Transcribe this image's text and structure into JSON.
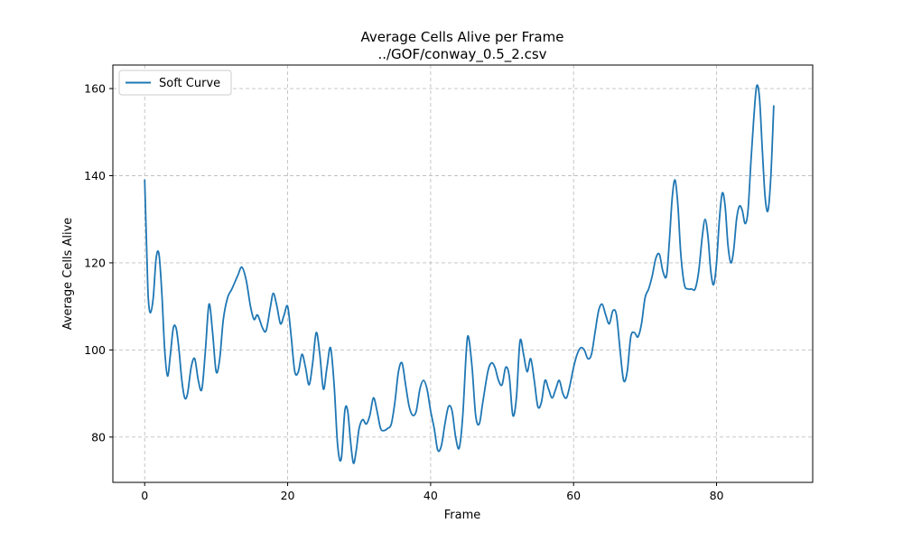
{
  "chart_data": {
    "type": "line",
    "title": "Average Cells Alive per Frame",
    "subtitle": "../GOF/conway_0.5_2.csv",
    "xlabel": "Frame",
    "ylabel": "Average Cells Alive",
    "xlim": [
      -4.45,
      93.45
    ],
    "ylim": [
      69.6,
      165.4
    ],
    "xticks": [
      0,
      20,
      40,
      60,
      80
    ],
    "yticks": [
      80,
      100,
      120,
      140,
      160
    ],
    "grid": true,
    "legend_position": "top-left",
    "series": [
      {
        "name": "Soft Curve",
        "color": "#1f77b4",
        "points": [
          [
            0,
            139
          ],
          [
            0.3,
            122
          ],
          [
            0.5,
            112
          ],
          [
            0.8,
            108.5
          ],
          [
            1.2,
            112
          ],
          [
            1.6,
            121
          ],
          [
            2,
            122
          ],
          [
            2.4,
            113
          ],
          [
            2.8,
            100
          ],
          [
            3.2,
            94
          ],
          [
            3.6,
            99
          ],
          [
            4,
            105
          ],
          [
            4.4,
            105
          ],
          [
            4.8,
            100
          ],
          [
            5.2,
            93
          ],
          [
            5.6,
            89
          ],
          [
            6,
            90
          ],
          [
            6.5,
            96
          ],
          [
            7,
            98
          ],
          [
            7.5,
            93
          ],
          [
            8,
            91
          ],
          [
            8.5,
            100
          ],
          [
            9,
            110.5
          ],
          [
            9.5,
            104
          ],
          [
            10,
            95
          ],
          [
            10.5,
            98
          ],
          [
            11,
            107
          ],
          [
            11.6,
            112
          ],
          [
            12.2,
            114
          ],
          [
            13,
            117
          ],
          [
            13.6,
            119
          ],
          [
            14.2,
            116
          ],
          [
            14.8,
            110
          ],
          [
            15.3,
            107
          ],
          [
            15.8,
            108
          ],
          [
            16.5,
            105
          ],
          [
            17,
            104.5
          ],
          [
            17.6,
            110
          ],
          [
            18,
            113
          ],
          [
            18.5,
            110
          ],
          [
            19,
            106
          ],
          [
            19.5,
            108
          ],
          [
            20,
            110
          ],
          [
            20.5,
            103
          ],
          [
            21,
            95
          ],
          [
            21.5,
            95
          ],
          [
            22,
            99
          ],
          [
            22.5,
            96
          ],
          [
            23,
            92
          ],
          [
            23.5,
            97
          ],
          [
            24,
            104
          ],
          [
            24.5,
            99
          ],
          [
            25,
            91
          ],
          [
            25.5,
            96
          ],
          [
            26,
            100.5
          ],
          [
            26.5,
            92
          ],
          [
            27,
            78
          ],
          [
            27.5,
            75
          ],
          [
            28,
            86
          ],
          [
            28.4,
            86
          ],
          [
            28.8,
            79
          ],
          [
            29.2,
            74
          ],
          [
            29.6,
            77
          ],
          [
            30,
            82
          ],
          [
            30.5,
            84
          ],
          [
            31,
            83
          ],
          [
            31.5,
            85
          ],
          [
            32,
            89
          ],
          [
            32.5,
            86
          ],
          [
            33,
            82
          ],
          [
            33.5,
            81.5
          ],
          [
            34,
            82
          ],
          [
            34.5,
            83
          ],
          [
            35,
            88
          ],
          [
            35.5,
            95
          ],
          [
            36,
            97
          ],
          [
            36.5,
            92
          ],
          [
            37,
            87
          ],
          [
            37.5,
            85
          ],
          [
            38,
            86
          ],
          [
            38.5,
            91
          ],
          [
            39,
            93
          ],
          [
            39.5,
            91
          ],
          [
            40,
            86
          ],
          [
            40.5,
            82
          ],
          [
            41,
            77
          ],
          [
            41.5,
            78
          ],
          [
            42,
            83
          ],
          [
            42.5,
            87
          ],
          [
            43,
            86
          ],
          [
            43.5,
            80
          ],
          [
            44,
            77.5
          ],
          [
            44.5,
            85
          ],
          [
            45,
            100
          ],
          [
            45.3,
            103
          ],
          [
            45.8,
            96
          ],
          [
            46.3,
            85
          ],
          [
            46.8,
            83
          ],
          [
            47.3,
            88
          ],
          [
            48,
            95
          ],
          [
            48.5,
            97
          ],
          [
            49,
            96
          ],
          [
            49.5,
            93
          ],
          [
            50,
            92
          ],
          [
            50.5,
            96
          ],
          [
            51,
            94
          ],
          [
            51.5,
            85
          ],
          [
            52,
            89
          ],
          [
            52.5,
            102
          ],
          [
            53,
            99
          ],
          [
            53.5,
            95
          ],
          [
            54,
            98
          ],
          [
            54.5,
            93
          ],
          [
            55,
            87
          ],
          [
            55.5,
            88
          ],
          [
            56,
            93
          ],
          [
            56.5,
            91
          ],
          [
            57,
            89
          ],
          [
            57.5,
            91
          ],
          [
            58,
            93
          ],
          [
            58.5,
            90
          ],
          [
            59,
            89
          ],
          [
            59.5,
            92
          ],
          [
            60,
            96
          ],
          [
            60.5,
            99
          ],
          [
            61,
            100.5
          ],
          [
            61.5,
            100
          ],
          [
            62,
            98
          ],
          [
            62.5,
            99
          ],
          [
            63,
            104
          ],
          [
            63.5,
            109
          ],
          [
            64,
            110.5
          ],
          [
            64.5,
            108
          ],
          [
            65,
            106
          ],
          [
            65.5,
            109
          ],
          [
            66,
            108
          ],
          [
            66.5,
            100
          ],
          [
            67,
            93
          ],
          [
            67.5,
            95
          ],
          [
            68,
            103
          ],
          [
            68.5,
            104
          ],
          [
            69,
            103
          ],
          [
            69.5,
            106
          ],
          [
            70,
            112
          ],
          [
            70.5,
            114
          ],
          [
            71,
            117
          ],
          [
            71.5,
            121
          ],
          [
            72,
            122
          ],
          [
            72.5,
            118
          ],
          [
            73,
            117
          ],
          [
            73.4,
            125
          ],
          [
            73.8,
            135
          ],
          [
            74.2,
            139
          ],
          [
            74.6,
            133
          ],
          [
            75,
            122
          ],
          [
            75.5,
            115
          ],
          [
            76,
            114
          ],
          [
            76.5,
            114
          ],
          [
            77,
            114
          ],
          [
            77.5,
            118
          ],
          [
            78,
            126
          ],
          [
            78.4,
            130
          ],
          [
            78.8,
            126
          ],
          [
            79.2,
            118
          ],
          [
            79.6,
            115
          ],
          [
            80,
            120
          ],
          [
            80.4,
            130
          ],
          [
            80.8,
            136
          ],
          [
            81.2,
            133
          ],
          [
            81.6,
            124
          ],
          [
            82,
            120
          ],
          [
            82.4,
            123
          ],
          [
            82.8,
            130
          ],
          [
            83.2,
            133
          ],
          [
            83.6,
            132
          ],
          [
            84,
            129
          ],
          [
            84.4,
            132
          ],
          [
            84.8,
            143
          ],
          [
            85.2,
            153
          ],
          [
            85.6,
            160.5
          ],
          [
            86,
            158
          ],
          [
            86.4,
            146
          ],
          [
            86.8,
            135
          ],
          [
            87.2,
            132
          ],
          [
            87.6,
            140
          ],
          [
            88,
            156
          ]
        ]
      }
    ]
  }
}
